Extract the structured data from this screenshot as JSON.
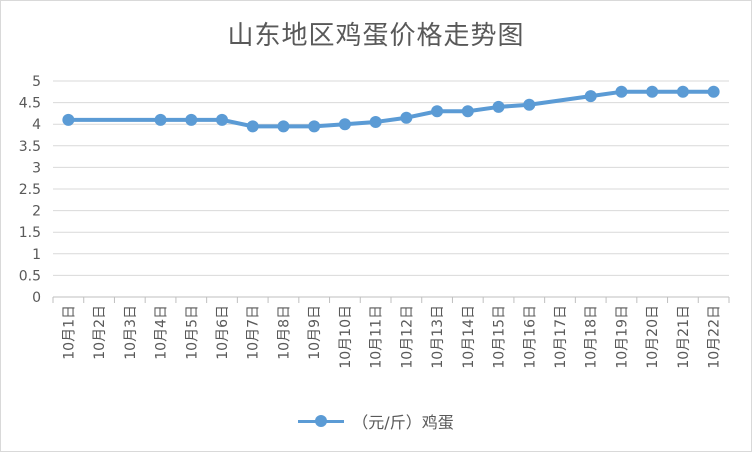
{
  "chart_data": {
    "type": "line",
    "title": "山东地区鸡蛋价格走势图",
    "categories": [
      "10月1日",
      "10月2日",
      "10月3日",
      "10月4日",
      "10月5日",
      "10月6日",
      "10月7日",
      "10月8日",
      "10月9日",
      "10月10日",
      "10月11日",
      "10月12日",
      "10月13日",
      "10月14日",
      "10月15日",
      "10月16日",
      "10月17日",
      "10月18日",
      "10月19日",
      "10月20日",
      "10月21日",
      "10月22日"
    ],
    "series": [
      {
        "name": "（元/斤）鸡蛋",
        "color": "#5b9bd5",
        "values": [
          4.1,
          null,
          null,
          4.1,
          4.1,
          4.1,
          3.95,
          3.95,
          3.95,
          4.0,
          4.05,
          4.15,
          4.3,
          4.3,
          4.4,
          4.45,
          null,
          4.65,
          4.75,
          4.75,
          4.75,
          4.75
        ]
      }
    ],
    "ylim": [
      0,
      5
    ],
    "yticks": [
      "0",
      "0.5",
      "1",
      "1.5",
      "2",
      "2.5",
      "3",
      "3.5",
      "4",
      "4.5",
      "5"
    ],
    "grid": true,
    "legend": "bottom"
  }
}
